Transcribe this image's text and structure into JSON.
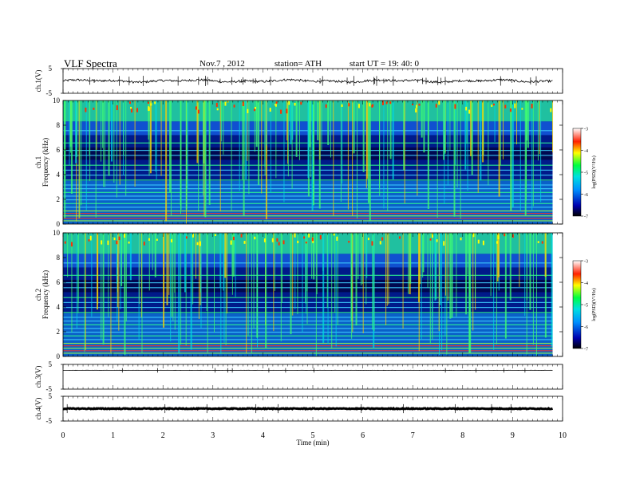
{
  "header": {
    "title": "VLF  Spectra",
    "date": "Nov.7  , 2012",
    "station": "station= ATH",
    "start": "start  UT  =    19: 40: 0"
  },
  "chart_data": [
    {
      "type": "line",
      "name": "ch1_waveform",
      "ylabel": "ch.1(V)",
      "ylim": [
        -5,
        5
      ],
      "yticks": [
        "5",
        "-5"
      ]
    },
    {
      "type": "heatmap",
      "name": "ch1_spectrogram",
      "ylabel": "ch.1",
      "ylabel2": "Frequency (kHz)",
      "ylim": [
        0,
        10
      ],
      "yticks": [
        "10",
        "8",
        "6",
        "4",
        "2",
        "0"
      ],
      "colorbar": {
        "label": "log(PSD)(V²/Hz)",
        "range": [
          -7,
          -3
        ],
        "ticks": [
          "-3",
          "-4",
          "-5",
          "-6",
          "-7"
        ]
      }
    },
    {
      "type": "heatmap",
      "name": "ch2_spectrogram",
      "ylabel": "ch.2",
      "ylabel2": "Frequency (kHz)",
      "ylim": [
        0,
        10
      ],
      "yticks": [
        "10",
        "8",
        "6",
        "4",
        "2",
        "0"
      ],
      "colorbar": {
        "label": "log(PSD)(V²/Hz)",
        "range": [
          -7,
          -3
        ],
        "ticks": [
          "-3",
          "-4",
          "-5",
          "-6",
          "-7"
        ]
      }
    },
    {
      "type": "line",
      "name": "ch3_waveform",
      "ylabel": "ch.3(V)",
      "ylim": [
        -5,
        5
      ],
      "yticks": [
        "5",
        "-5"
      ]
    },
    {
      "type": "line",
      "name": "ch4_waveform",
      "ylabel": "ch.4(V)",
      "ylim": [
        -5,
        5
      ],
      "yticks": [
        "5",
        "-5"
      ]
    }
  ],
  "xaxis": {
    "label": "Time  (min)",
    "range": [
      0,
      10
    ],
    "ticks": [
      "0",
      "1",
      "2",
      "3",
      "4",
      "5",
      "6",
      "7",
      "8",
      "9",
      "10"
    ]
  },
  "colors": {
    "background": "#000066",
    "low": "#0000a0",
    "mid": "#00c8c8",
    "high": "#00ff60",
    "hot": "#ff2000"
  }
}
